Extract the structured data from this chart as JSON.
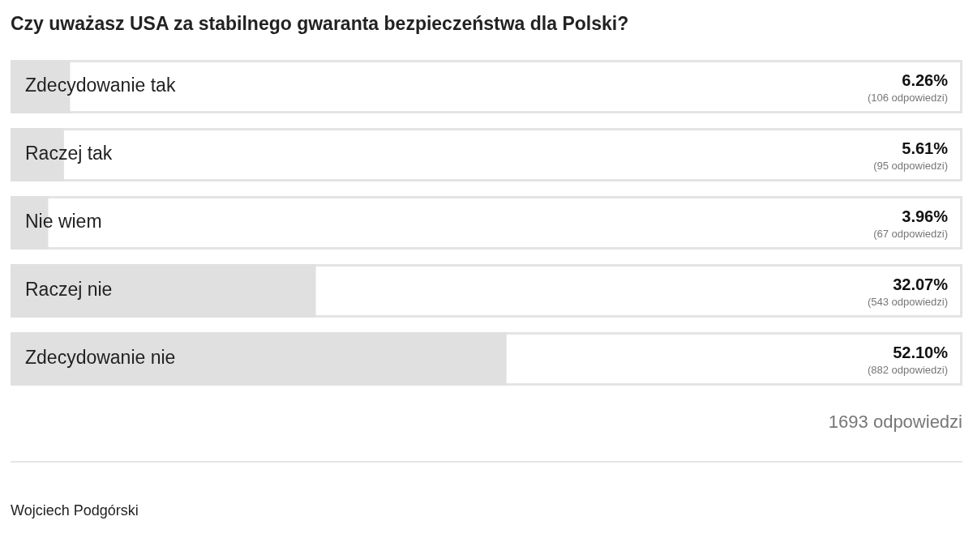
{
  "chart_data": {
    "type": "bar",
    "orientation": "horizontal",
    "title": "Czy uważasz USA za stabilnego gwaranta bezpieczeństwa dla Polski?",
    "categories": [
      "Zdecydowanie tak",
      "Raczej tak",
      "Nie wiem",
      "Raczej nie",
      "Zdecydowanie nie"
    ],
    "values": [
      6.26,
      5.61,
      3.96,
      32.07,
      52.1
    ],
    "value_labels": [
      "6.26%",
      "5.61%",
      "3.96%",
      "32.07%",
      "52.10%"
    ],
    "color": "#e0e0e0",
    "xlim": [
      0,
      100
    ],
    "tick_labels": false,
    "legend": false,
    "annotations": [
      "(106 odpowiedzi)",
      "(95 odpowiedzi)",
      "(67 odpowiedzi)",
      "(543 odpowiedzi)",
      "(882 odpowiedzi)",
      "1693 odpowiedzi",
      "Wojciech Podgórski"
    ]
  }
}
